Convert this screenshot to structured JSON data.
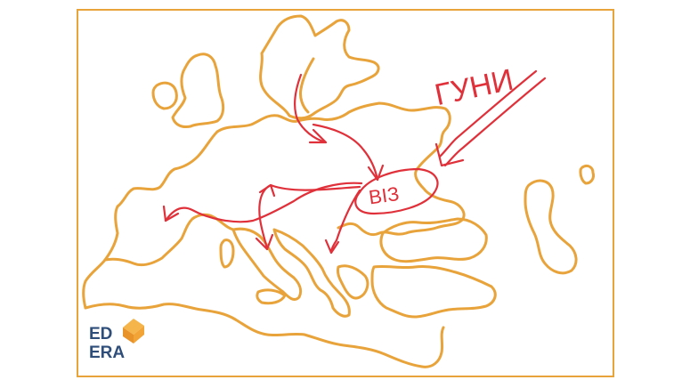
{
  "map": {
    "coast_color": "#e8a33a",
    "annotation_color": "#e0303a",
    "label_huns": "ГУНИ",
    "label_bizantium": "ВІЗ"
  },
  "logo": {
    "line1": "ED",
    "line2": "ERA",
    "text_color": "#2f4e7a",
    "mark_color": "#f2a33a"
  }
}
